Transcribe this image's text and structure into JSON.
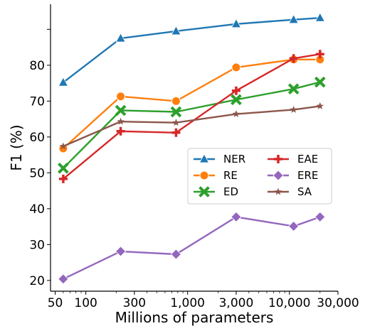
{
  "chart_data": {
    "type": "line",
    "title": "",
    "xlabel": "Millions of parameters",
    "ylabel": "F1 (%)",
    "xscale": "log",
    "xlim": [
      45,
      30000
    ],
    "ylim": [
      17,
      97
    ],
    "grid": false,
    "legend_position": "center-right",
    "legend_columns": 2,
    "x_ticks": [
      50,
      100,
      300,
      1000,
      3000,
      10000,
      30000
    ],
    "x_tick_labels": [
      "50",
      "100",
      "300",
      "1,000",
      "3,000",
      "10,000",
      "30,000"
    ],
    "y_ticks": [
      20,
      30,
      40,
      50,
      60,
      70,
      80
    ],
    "y_tick_labels": [
      "20",
      "30",
      "40",
      "50",
      "60",
      "70",
      "80"
    ],
    "x": [
      60,
      220,
      770,
      3000,
      11000,
      20000
    ],
    "series": [
      {
        "name": "NER",
        "color": "#1f77b4",
        "marker": "triangle",
        "values": [
          75.2,
          87.5,
          89.5,
          91.5,
          92.7,
          93.2
        ]
      },
      {
        "name": "RE",
        "color": "#ff7f0e",
        "marker": "circle",
        "values": [
          56.8,
          71.3,
          70.0,
          79.4,
          81.6,
          81.6
        ]
      },
      {
        "name": "ED",
        "color": "#2ca02c",
        "marker": "x",
        "values": [
          51.3,
          67.4,
          67.0,
          70.4,
          73.4,
          75.3
        ]
      },
      {
        "name": "EAE",
        "color": "#d62728",
        "marker": "plus",
        "values": [
          48.3,
          61.6,
          61.2,
          72.9,
          81.9,
          83.1
        ]
      },
      {
        "name": "ERE",
        "color": "#9467bd",
        "marker": "diamond",
        "values": [
          20.4,
          28.1,
          27.3,
          37.7,
          35.1,
          37.7
        ]
      },
      {
        "name": "SA",
        "color": "#8c564b",
        "marker": "star",
        "values": [
          57.4,
          64.3,
          64.0,
          66.4,
          67.6,
          68.6
        ]
      }
    ]
  }
}
